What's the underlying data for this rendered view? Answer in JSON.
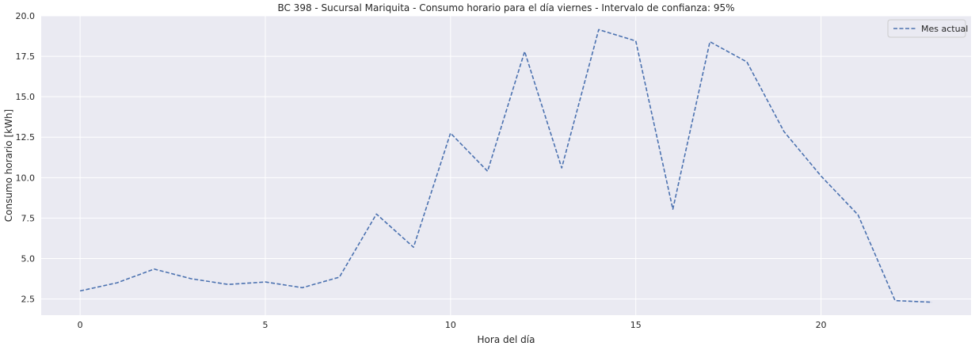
{
  "chart_data": {
    "type": "line",
    "title": "BC 398 - Sucursal Mariquita - Consumo horario para el día viernes - Intervalo de confianza: 95%",
    "xlabel": "Hora del día",
    "ylabel": "Consumo horario [kWh]",
    "xlim": [
      -1.05,
      24.05
    ],
    "ylim": [
      1.5,
      20.0
    ],
    "xticks": [
      0,
      5,
      10,
      15,
      20
    ],
    "yticks": [
      2.5,
      5.0,
      7.5,
      10.0,
      12.5,
      15.0,
      17.5,
      20.0
    ],
    "xtick_labels": [
      "0",
      "5",
      "10",
      "15",
      "20"
    ],
    "ytick_labels": [
      "2.5",
      "5.0",
      "7.5",
      "10.0",
      "12.5",
      "15.0",
      "17.5",
      "20.0"
    ],
    "grid": true,
    "legend_position": "top-right",
    "series": [
      {
        "name": "Mes actual",
        "color": "#4c72b0",
        "line_style": "dashed",
        "x": [
          0,
          1,
          2,
          3,
          4,
          5,
          6,
          7,
          8,
          9,
          10,
          11,
          12,
          13,
          14,
          15,
          16,
          17,
          18,
          19,
          20,
          21,
          22,
          23
        ],
        "y": [
          3.0,
          3.5,
          4.35,
          3.75,
          3.4,
          3.55,
          3.2,
          3.85,
          7.75,
          5.7,
          12.75,
          10.4,
          17.8,
          10.6,
          19.15,
          18.45,
          8.05,
          18.4,
          17.15,
          12.85,
          10.1,
          7.7,
          2.4,
          2.3
        ]
      }
    ]
  }
}
